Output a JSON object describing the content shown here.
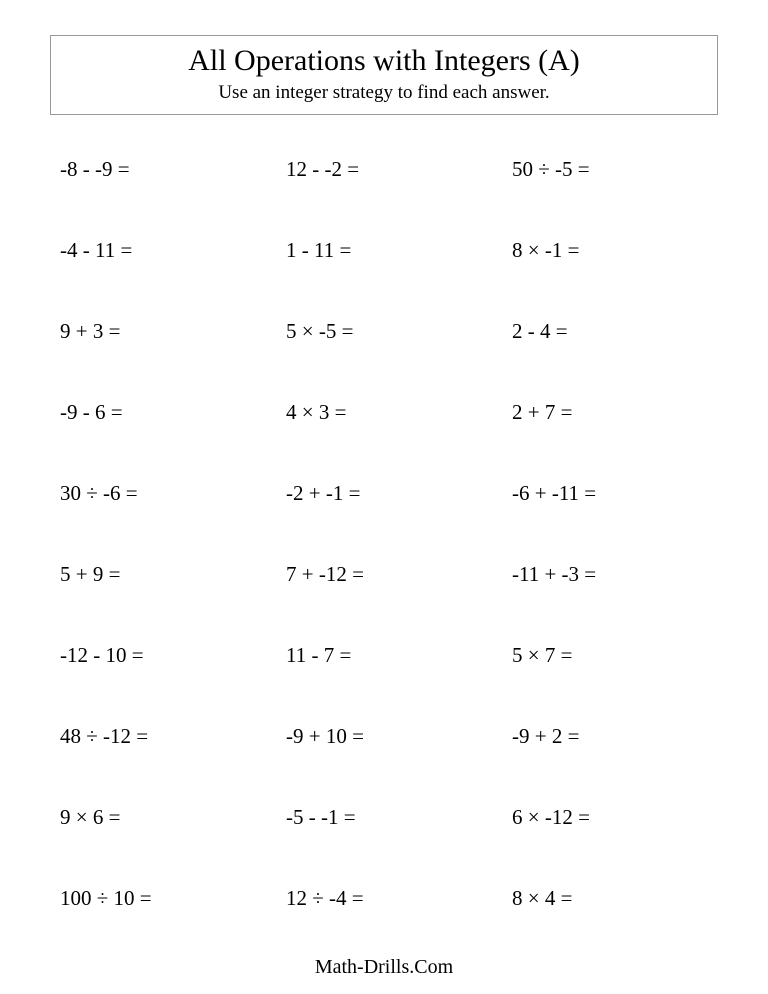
{
  "title": "All Operations with Integers (A)",
  "subtitle": "Use an integer strategy to find each answer.",
  "footer": "Math-Drills.Com",
  "problems": {
    "r0c0": "-8 - -9 =",
    "r0c1": "12 - -2 =",
    "r0c2": "50 ÷ -5 =",
    "r1c0": "-4 - 11 =",
    "r1c1": "1 - 11 =",
    "r1c2": "8 × -1 =",
    "r2c0": "9 + 3 =",
    "r2c1": "5 × -5 =",
    "r2c2": "2 - 4 =",
    "r3c0": "-9 - 6 =",
    "r3c1": "4 × 3 =",
    "r3c2": "2 + 7 =",
    "r4c0": "30 ÷ -6 =",
    "r4c1": "-2 + -1 =",
    "r4c2": "-6 + -11 =",
    "r5c0": "5 + 9 =",
    "r5c1": "7 + -12 =",
    "r5c2": "-11 + -3 =",
    "r6c0": "-12 - 10 =",
    "r6c1": "11 - 7 =",
    "r6c2": "5 × 7 =",
    "r7c0": "48 ÷ -12 =",
    "r7c1": "-9 + 10 =",
    "r7c2": "-9 + 2 =",
    "r8c0": "9 × 6 =",
    "r8c1": "-5 - -1 =",
    "r8c2": "6 × -12 =",
    "r9c0": "100 ÷ 10 =",
    "r9c1": "12 ÷ -4 =",
    "r9c2": "8 × 4 ="
  }
}
